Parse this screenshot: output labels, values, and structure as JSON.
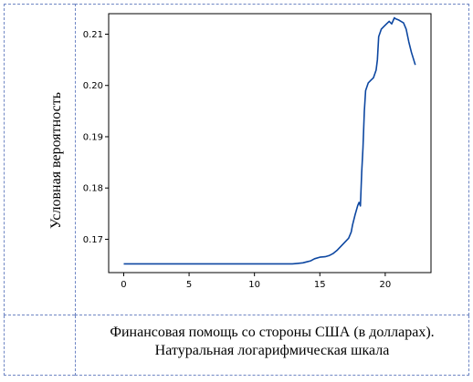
{
  "chart_data": {
    "type": "line",
    "title": "",
    "ylabel": "Условная вероятность",
    "xlabel": "Финансовая помощь со стороны США (в долларах).",
    "xlabel_line2": "Натуральная логарифмическая шкала",
    "xlim": [
      -1.15,
      23.5
    ],
    "ylim": [
      0.1635,
      0.214
    ],
    "xticks": [
      0,
      5,
      10,
      15,
      20
    ],
    "yticks": [
      0.17,
      0.18,
      0.19,
      0.2,
      0.21
    ],
    "xtick_labels": [
      "0",
      "5",
      "10",
      "15",
      "20"
    ],
    "ytick_labels": [
      "0.17",
      "0.18",
      "0.19",
      "0.20",
      "0.21"
    ],
    "grid": false,
    "legend": "none",
    "series": [
      {
        "color": "#0d47a1",
        "x": [
          0,
          2,
          4,
          6,
          8,
          10,
          12,
          12.9,
          13.3,
          13.7,
          14.0,
          14.3,
          14.6,
          15.0,
          15.4,
          15.7,
          16.0,
          16.3,
          16.6,
          16.9,
          17.2,
          17.4,
          17.5,
          17.7,
          17.9,
          18.0,
          18.1,
          18.2,
          18.3,
          18.4,
          18.5,
          18.7,
          18.9,
          19.1,
          19.3,
          19.4,
          19.5,
          19.7,
          19.9,
          20.1,
          20.3,
          20.5,
          20.7,
          20.8,
          21.0,
          21.2,
          21.4,
          21.6,
          21.8,
          22.0,
          22.3
        ],
        "y": [
          0.1652,
          0.1652,
          0.1652,
          0.1652,
          0.1652,
          0.1652,
          0.1652,
          0.1652,
          0.1653,
          0.1654,
          0.1656,
          0.1658,
          0.1662,
          0.1665,
          0.1666,
          0.1668,
          0.1672,
          0.1678,
          0.1686,
          0.1694,
          0.1702,
          0.1714,
          0.1728,
          0.1748,
          0.1766,
          0.1772,
          0.1765,
          0.183,
          0.1878,
          0.195,
          0.199,
          0.2005,
          0.201,
          0.2015,
          0.203,
          0.205,
          0.2095,
          0.211,
          0.2115,
          0.212,
          0.2125,
          0.212,
          0.2132,
          0.213,
          0.2128,
          0.2125,
          0.2122,
          0.211,
          0.2085,
          0.2065,
          0.204
        ]
      }
    ]
  }
}
